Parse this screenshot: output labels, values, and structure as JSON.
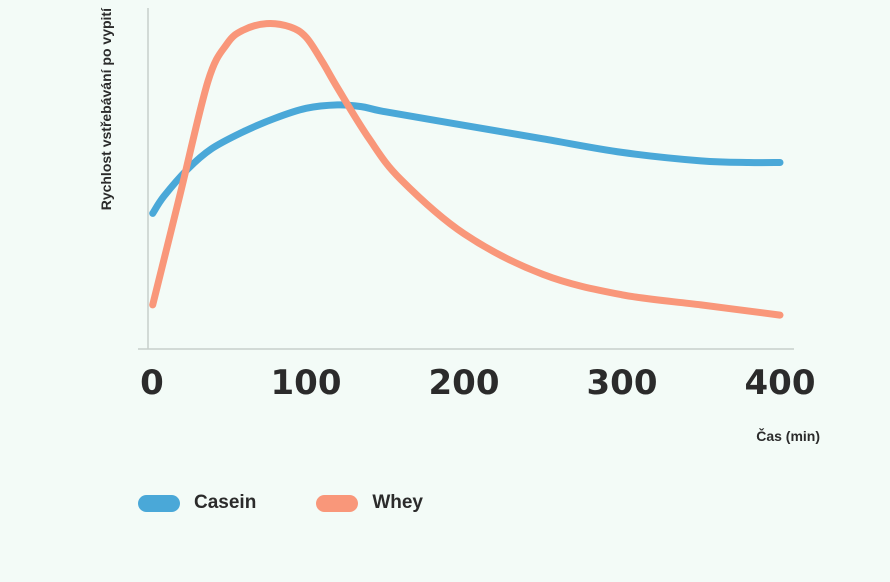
{
  "chart_data": {
    "type": "line",
    "xlabel": "Čas (min)",
    "ylabel": "Rychlost vstřebávání po vypití",
    "xlim": [
      0,
      400
    ],
    "ylim": [
      0,
      100
    ],
    "x_ticks": [
      "0",
      "100",
      "200",
      "300",
      "400"
    ],
    "grid": false,
    "legend_position": "bottom-left",
    "series": [
      {
        "name": "Casein",
        "color": "#4aa8d8",
        "x": [
          3,
          10,
          25,
          40,
          60,
          80,
          100,
          120,
          135,
          150,
          200,
          250,
          300,
          350,
          380,
          400
        ],
        "y": [
          40,
          45,
          53,
          59,
          64,
          68,
          71,
          72,
          71.5,
          70,
          66,
          62,
          58,
          55.5,
          55,
          55
        ]
      },
      {
        "name": "Whey",
        "color": "#f9977a",
        "x": [
          3,
          20,
          38,
          50,
          60,
          75,
          90,
          100,
          110,
          120,
          140,
          160,
          200,
          250,
          300,
          350,
          400
        ],
        "y": [
          13,
          45,
          79,
          90,
          94,
          96,
          95,
          92,
          85,
          77,
          62,
          50,
          34,
          22,
          16,
          13,
          10
        ]
      }
    ]
  }
}
